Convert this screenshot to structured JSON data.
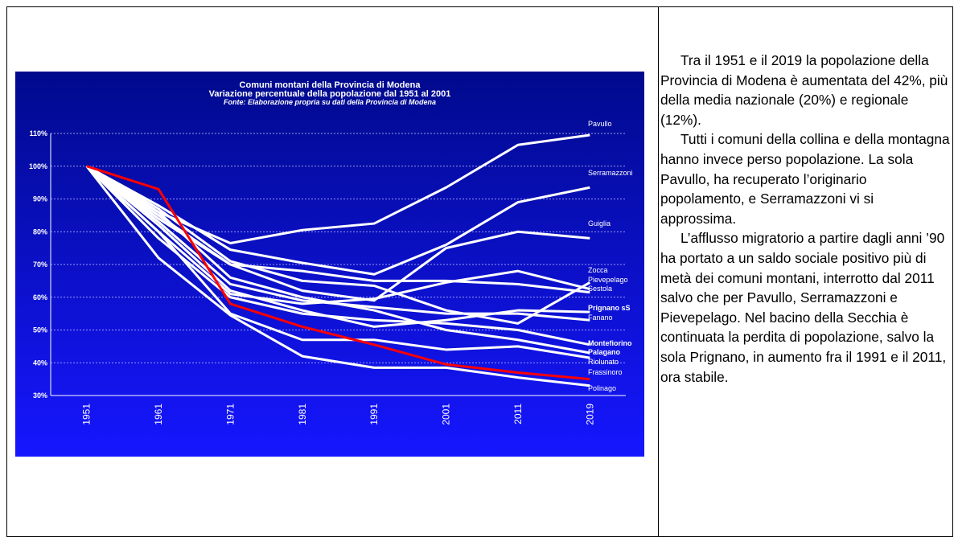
{
  "chart_data": {
    "type": "line",
    "title": "Comuni montani della Provincia di Modena",
    "subtitle": "Variazione percentuale della popolazione dal 1951 al 2001",
    "source": "Fonte: Elaborazione propria su dati della Provincia di Modena",
    "categories": [
      "1951",
      "1961",
      "1971",
      "1981",
      "1991",
      "2001",
      "2011",
      "2019"
    ],
    "ylim": [
      30,
      110
    ],
    "yticks": [
      {
        "value": 30,
        "label": "30%"
      },
      {
        "value": 40,
        "label": "40%"
      },
      {
        "value": 50,
        "label": "50%"
      },
      {
        "value": 60,
        "label": "60%"
      },
      {
        "value": 70,
        "label": "70%"
      },
      {
        "value": 80,
        "label": "80%"
      },
      {
        "value": 90,
        "label": "90%"
      },
      {
        "value": 100,
        "label": "100%"
      },
      {
        "value": 110,
        "label": "110%"
      }
    ],
    "grid": true,
    "series": [
      {
        "name": "Pavullo",
        "color": "#ffffff",
        "values": [
          100,
          86,
          76.5,
          80.5,
          82.5,
          93.5,
          106.5,
          109.5
        ]
      },
      {
        "name": "Serramazzoni",
        "color": "#ffffff",
        "values": [
          100,
          88,
          74.5,
          70.5,
          67,
          76,
          89,
          93.5
        ]
      },
      {
        "name": "Guiglia",
        "color": "#ffffff",
        "values": [
          100,
          85,
          70,
          62,
          59,
          75,
          80,
          78
        ]
      },
      {
        "name": "Zocca",
        "color": "#ffffff",
        "values": [
          100,
          87,
          71,
          65,
          63.5,
          56,
          52,
          64.5
        ]
      },
      {
        "name": "Pievepelago",
        "color": "#ffffff",
        "values": [
          100,
          80,
          61,
          58,
          59.5,
          64.5,
          68,
          62.5
        ]
      },
      {
        "name": "Sestola",
        "color": "#ffffff",
        "values": [
          100,
          84,
          70,
          68,
          65,
          65,
          64,
          61.5
        ]
      },
      {
        "name": "Prignano sS",
        "color": "#ffffff",
        "values": [
          100,
          82,
          62,
          56,
          51,
          53,
          56,
          55.5
        ]
      },
      {
        "name": "Fanano",
        "color": "#ffffff",
        "values": [
          100,
          83,
          64,
          59,
          57,
          55,
          55,
          53
        ]
      },
      {
        "name": "Montefiorino",
        "color": "#ffffff",
        "values": [
          100,
          78,
          60,
          55,
          53,
          52,
          50,
          45.5
        ]
      },
      {
        "name": "Palagano",
        "color": "#ffffff",
        "values": [
          100,
          86,
          66,
          60,
          56,
          50,
          47,
          43
        ]
      },
      {
        "name": "Riolunato",
        "color": "#ffffff",
        "values": [
          100,
          80,
          55,
          47,
          47,
          44,
          45,
          41.5
        ]
      },
      {
        "name": "Polinago",
        "color": "#ffffff",
        "values": [
          100,
          72,
          54.5,
          42,
          38.5,
          38.5,
          35.5,
          33
        ]
      },
      {
        "name": "Frassinoro",
        "color": "#ff0000",
        "values": [
          100,
          93,
          58,
          51,
          45.5,
          39.5,
          37,
          35
        ]
      }
    ]
  },
  "text": {
    "paragraphs": [
      "Tra il 1951 e il 2019 la popolazione della Provincia di Modena è aumentata del 42%, più della media nazionale (20%) e regionale (12%).",
      "Tutti i comuni della collina e della montagna hanno invece perso popolazione. La sola Pavullo, ha recuperato l’originario popolamento, e Serramazzoni vi si approssima.",
      "L’afflusso migratorio a partire dagli anni ’90 ha portato a un saldo sociale positivo più di metà dei comuni montani, interrotto dal 2011 salvo che per Pavullo, Serramazzoni e Pievepelago. Nel bacino della Secchia è continuata la perdita di popolazione, salvo la sola Prignano, in aumento fra il 1991 e il 2011, ora stabile."
    ]
  }
}
